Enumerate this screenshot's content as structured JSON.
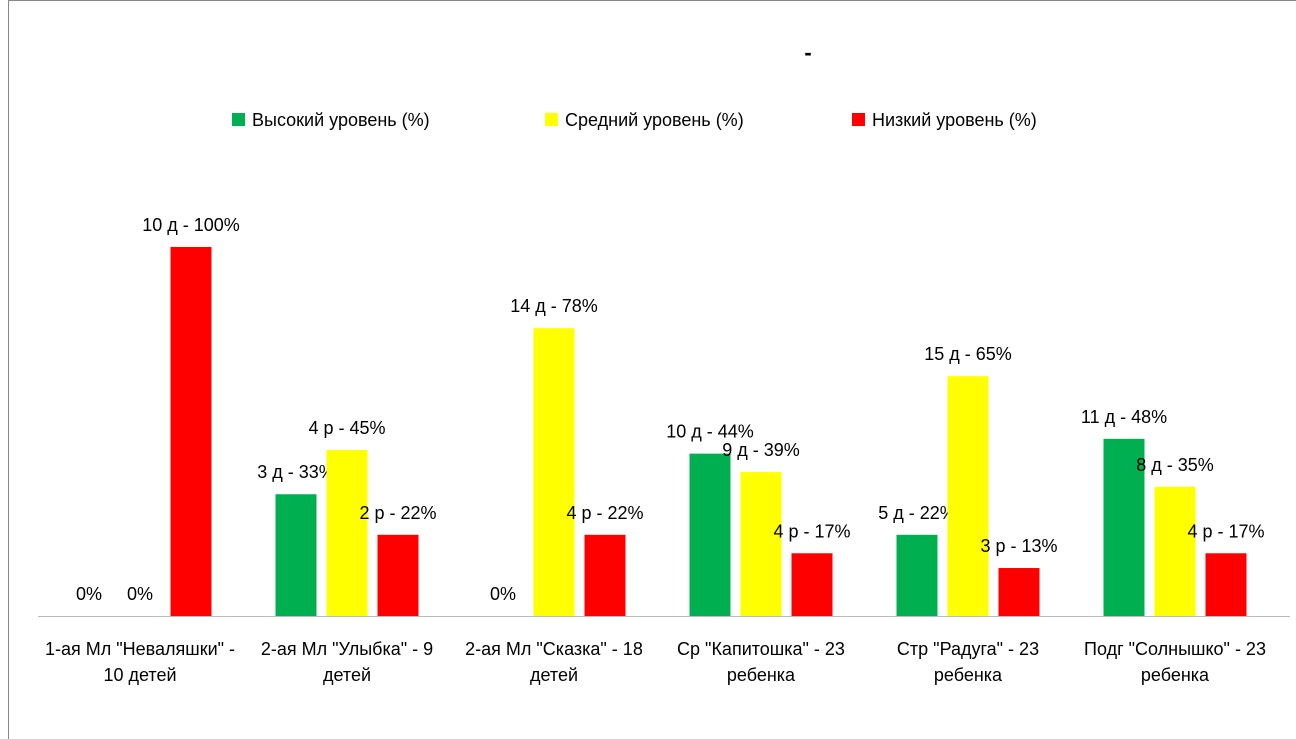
{
  "chart_data": {
    "type": "bar",
    "title": "-",
    "categories": [
      "1-ая Мл \"Неваляшки\" - 10 детей",
      "2-ая Мл \"Улыбка\" - 9 детей",
      "2-ая Мл \"Сказка\" - 18 детей",
      "Ср \"Капитошка\" - 23 ребенка",
      "Стр \"Радуга\" - 23 ребенка",
      "Подг \"Солнышко\" - 23 ребенка"
    ],
    "series": [
      {
        "name": "Высокий уровень (%)",
        "color": "#00b050",
        "values": [
          0,
          33,
          0,
          44,
          22,
          48
        ],
        "value_labels": [
          "0%",
          "3 д - 33%",
          "0%",
          "10 д - 44%",
          "5 д - 22%",
          "11 д - 48%"
        ]
      },
      {
        "name": "Средний уровень (%)",
        "color": "#ffff00",
        "values": [
          0,
          45,
          78,
          39,
          65,
          35
        ],
        "value_labels": [
          "0%",
          "4 р - 45%",
          "14 д - 78%",
          "9 д - 39%",
          "15 д - 65%",
          "8 д - 35%"
        ]
      },
      {
        "name": "Низкий уровень (%)",
        "color": "#ff0000",
        "values": [
          100,
          22,
          22,
          17,
          13,
          17
        ],
        "value_labels": [
          "10 д - 100%",
          "2 р - 22%",
          "4 р - 22%",
          "4 р - 17%",
          "3 р - 13%",
          "4 р - 17%"
        ]
      }
    ],
    "ylim": [
      0,
      100
    ],
    "legend": "top"
  }
}
